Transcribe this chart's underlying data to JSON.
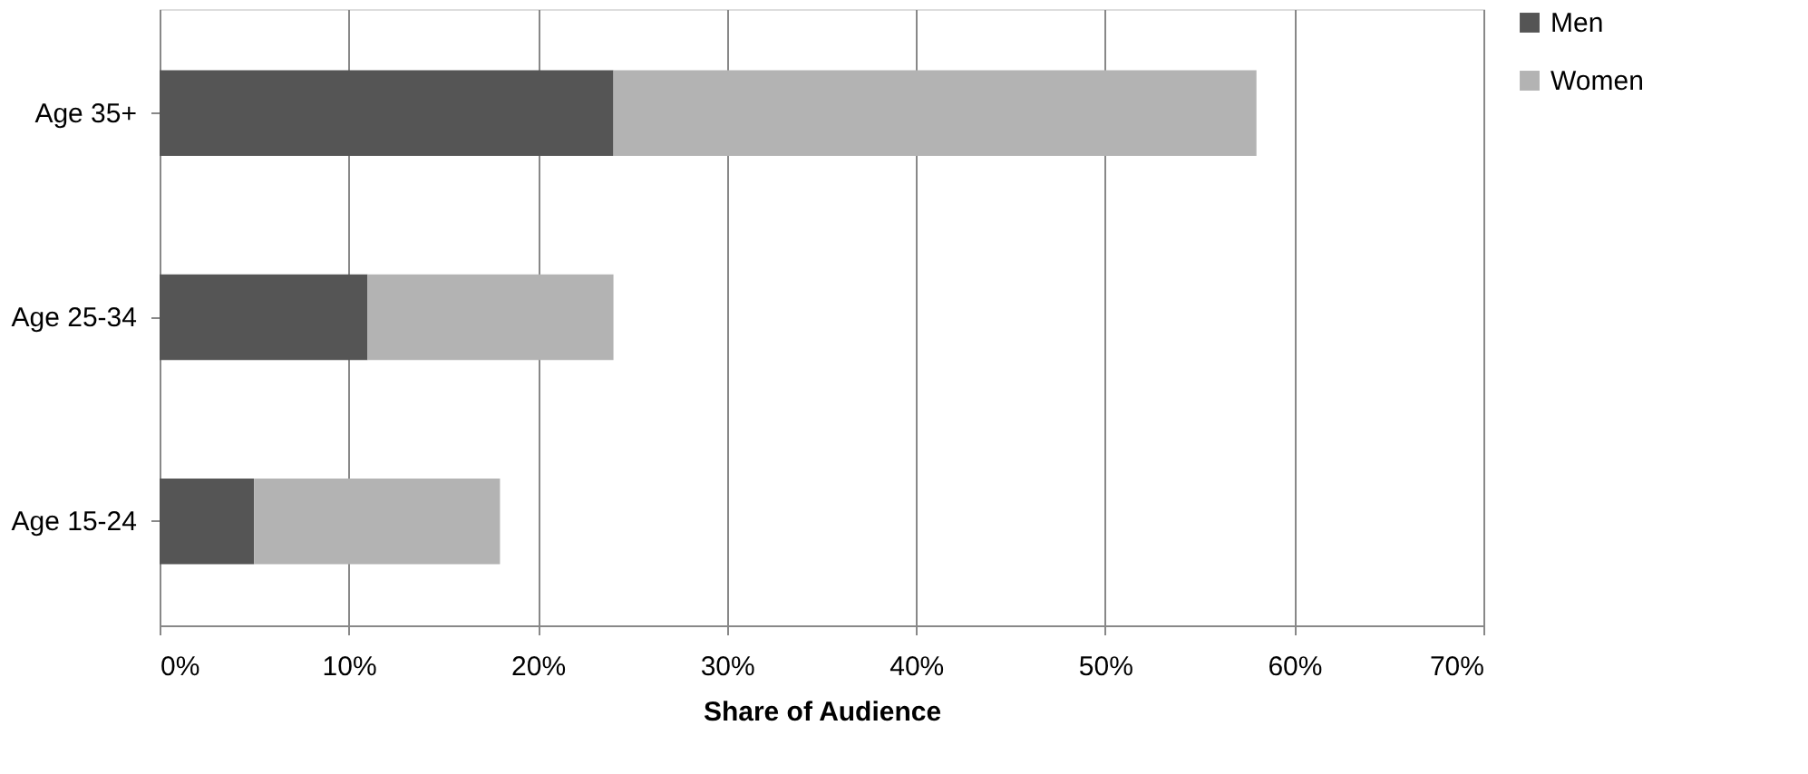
{
  "chart_data": {
    "type": "bar",
    "orientation": "horizontal",
    "stacked": true,
    "categories": [
      "Age 35+",
      "Age 25-34",
      "Age 15-24"
    ],
    "series": [
      {
        "name": "Men",
        "color": "#555555",
        "values": [
          24,
          11,
          5
        ]
      },
      {
        "name": "Women",
        "color": "#b3b3b3",
        "values": [
          34,
          13,
          13
        ]
      }
    ],
    "xlabel": "Share of Audience",
    "xlim": [
      0,
      70
    ],
    "xticks": [
      {
        "value": 0,
        "label": "0%"
      },
      {
        "value": 10,
        "label": "10%"
      },
      {
        "value": 20,
        "label": "20%"
      },
      {
        "value": 30,
        "label": "30%"
      },
      {
        "value": 40,
        "label": "40%"
      },
      {
        "value": 50,
        "label": "50%"
      },
      {
        "value": 60,
        "label": "60%"
      },
      {
        "value": 70,
        "label": "70%"
      }
    ],
    "grid": "x",
    "legend": "right"
  }
}
